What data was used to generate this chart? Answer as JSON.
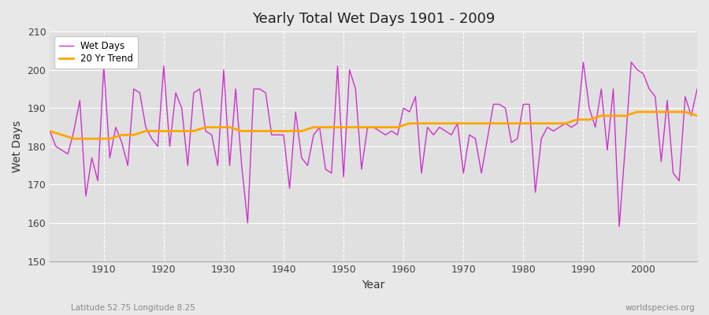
{
  "title": "Yearly Total Wet Days 1901 - 2009",
  "xlabel": "Year",
  "ylabel": "Wet Days",
  "subtitle_left": "Latitude 52.75 Longitude 8.25",
  "subtitle_right": "worldspecies.org",
  "line_color": "#cc33cc",
  "trend_color": "#ffa500",
  "ylim": [
    150,
    210
  ],
  "yticks": [
    150,
    160,
    170,
    180,
    190,
    200,
    210
  ],
  "xticks": [
    1910,
    1920,
    1930,
    1940,
    1950,
    1960,
    1970,
    1980,
    1990,
    2000
  ],
  "years": [
    1901,
    1902,
    1903,
    1904,
    1905,
    1906,
    1907,
    1908,
    1909,
    1910,
    1911,
    1912,
    1913,
    1914,
    1915,
    1916,
    1917,
    1918,
    1919,
    1920,
    1921,
    1922,
    1923,
    1924,
    1925,
    1926,
    1927,
    1928,
    1929,
    1930,
    1931,
    1932,
    1933,
    1934,
    1935,
    1936,
    1937,
    1938,
    1939,
    1940,
    1941,
    1942,
    1943,
    1944,
    1945,
    1946,
    1947,
    1948,
    1949,
    1950,
    1951,
    1952,
    1953,
    1954,
    1955,
    1956,
    1957,
    1958,
    1959,
    1960,
    1961,
    1962,
    1963,
    1964,
    1965,
    1966,
    1967,
    1968,
    1969,
    1970,
    1971,
    1972,
    1973,
    1974,
    1975,
    1976,
    1977,
    1978,
    1979,
    1980,
    1981,
    1982,
    1983,
    1984,
    1985,
    1986,
    1987,
    1988,
    1989,
    1990,
    1991,
    1992,
    1993,
    1994,
    1995,
    1996,
    1997,
    1998,
    1999,
    2000,
    2001,
    2002,
    2003,
    2004,
    2005,
    2006,
    2007,
    2008,
    2009
  ],
  "wet_days": [
    184,
    180,
    179,
    178,
    184,
    192,
    167,
    177,
    171,
    201,
    177,
    185,
    181,
    175,
    195,
    194,
    185,
    182,
    180,
    201,
    180,
    194,
    190,
    175,
    194,
    195,
    184,
    183,
    175,
    200,
    175,
    195,
    175,
    160,
    195,
    195,
    194,
    183,
    183,
    183,
    169,
    189,
    177,
    175,
    183,
    185,
    174,
    173,
    201,
    172,
    200,
    195,
    174,
    185,
    185,
    184,
    183,
    184,
    183,
    190,
    189,
    193,
    173,
    185,
    183,
    185,
    184,
    183,
    186,
    173,
    183,
    182,
    173,
    182,
    191,
    191,
    190,
    181,
    182,
    191,
    191,
    168,
    182,
    185,
    184,
    185,
    186,
    185,
    186,
    202,
    190,
    185,
    195,
    179,
    195,
    159,
    180,
    202,
    200,
    199,
    195,
    193,
    176,
    192,
    173,
    171,
    193,
    188,
    195
  ],
  "trend_years": [
    1901,
    1903,
    1905,
    1907,
    1909,
    1911,
    1913,
    1915,
    1917,
    1919,
    1921,
    1923,
    1925,
    1927,
    1929,
    1931,
    1933,
    1935,
    1937,
    1939,
    1941,
    1943,
    1945,
    1947,
    1949,
    1951,
    1953,
    1955,
    1957,
    1959,
    1961,
    1963,
    1965,
    1967,
    1969,
    1971,
    1973,
    1975,
    1977,
    1979,
    1981,
    1983,
    1985,
    1987,
    1989,
    1991,
    1993,
    1995,
    1997,
    1999,
    2001,
    2003,
    2005,
    2007,
    2009
  ],
  "trend_vals": [
    184,
    183,
    182,
    182,
    182,
    182,
    183,
    183,
    184,
    184,
    184,
    184,
    184,
    185,
    185,
    185,
    184,
    184,
    184,
    184,
    184,
    184,
    185,
    185,
    185,
    185,
    185,
    185,
    185,
    185,
    186,
    186,
    186,
    186,
    186,
    186,
    186,
    186,
    186,
    186,
    186,
    186,
    186,
    186,
    187,
    187,
    188,
    188,
    188,
    189,
    189,
    189,
    189,
    189,
    188
  ]
}
